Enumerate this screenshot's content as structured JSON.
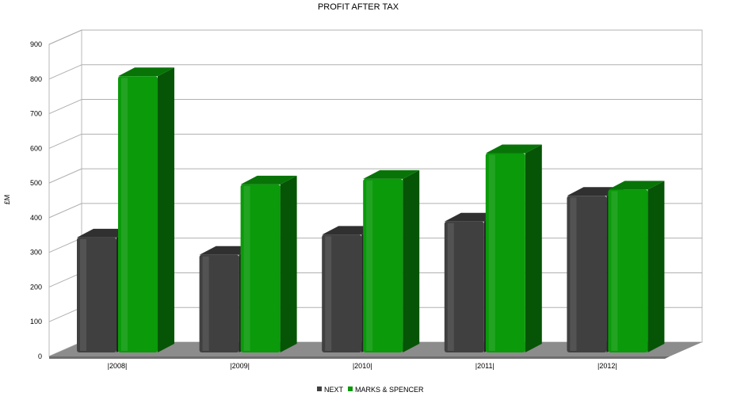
{
  "chart_data": {
    "type": "bar",
    "title": "PROFIT AFTER TAX",
    "ylabel": "£M",
    "xlabel": "",
    "categories": [
      "|2008|",
      "|2009|",
      "|2010|",
      "|2011|",
      "|2012|"
    ],
    "series": [
      {
        "name": "NEXT",
        "color": "#404040",
        "values": [
          343,
          293,
          351,
          389,
          463
        ]
      },
      {
        "name": "MARKS & SPENCER",
        "color": "#0a9a0a",
        "values": [
          808,
          496,
          512,
          586,
          481
        ]
      }
    ],
    "ylim": [
      0,
      900
    ],
    "yticks": [
      0,
      100,
      200,
      300,
      400,
      500,
      600,
      700,
      800,
      900
    ],
    "grid": true,
    "legend_position": "bottom",
    "style": "3d"
  }
}
